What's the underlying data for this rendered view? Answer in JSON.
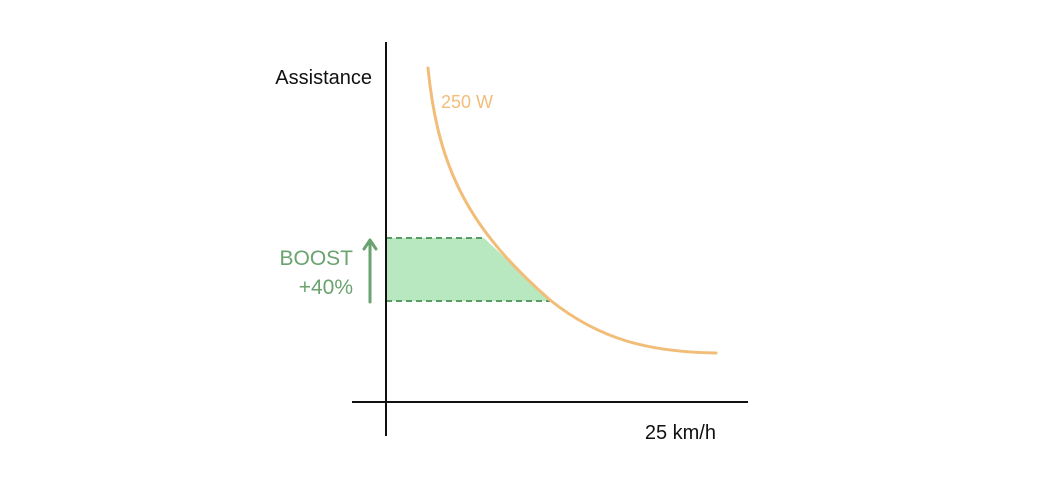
{
  "labels": {
    "y_axis": "Assistance",
    "x_axis": "25 km/h",
    "curve": "250 W",
    "boost_title": "BOOST",
    "boost_value": "+40%"
  },
  "colors": {
    "axis": "#111111",
    "curve": "#f2bd78",
    "boost_fill": "#b7e8bf",
    "boost_line": "#5a9a63",
    "boost_text": "#6aa36f"
  },
  "icons": {
    "boost_arrow": "up-arrow-icon"
  }
}
